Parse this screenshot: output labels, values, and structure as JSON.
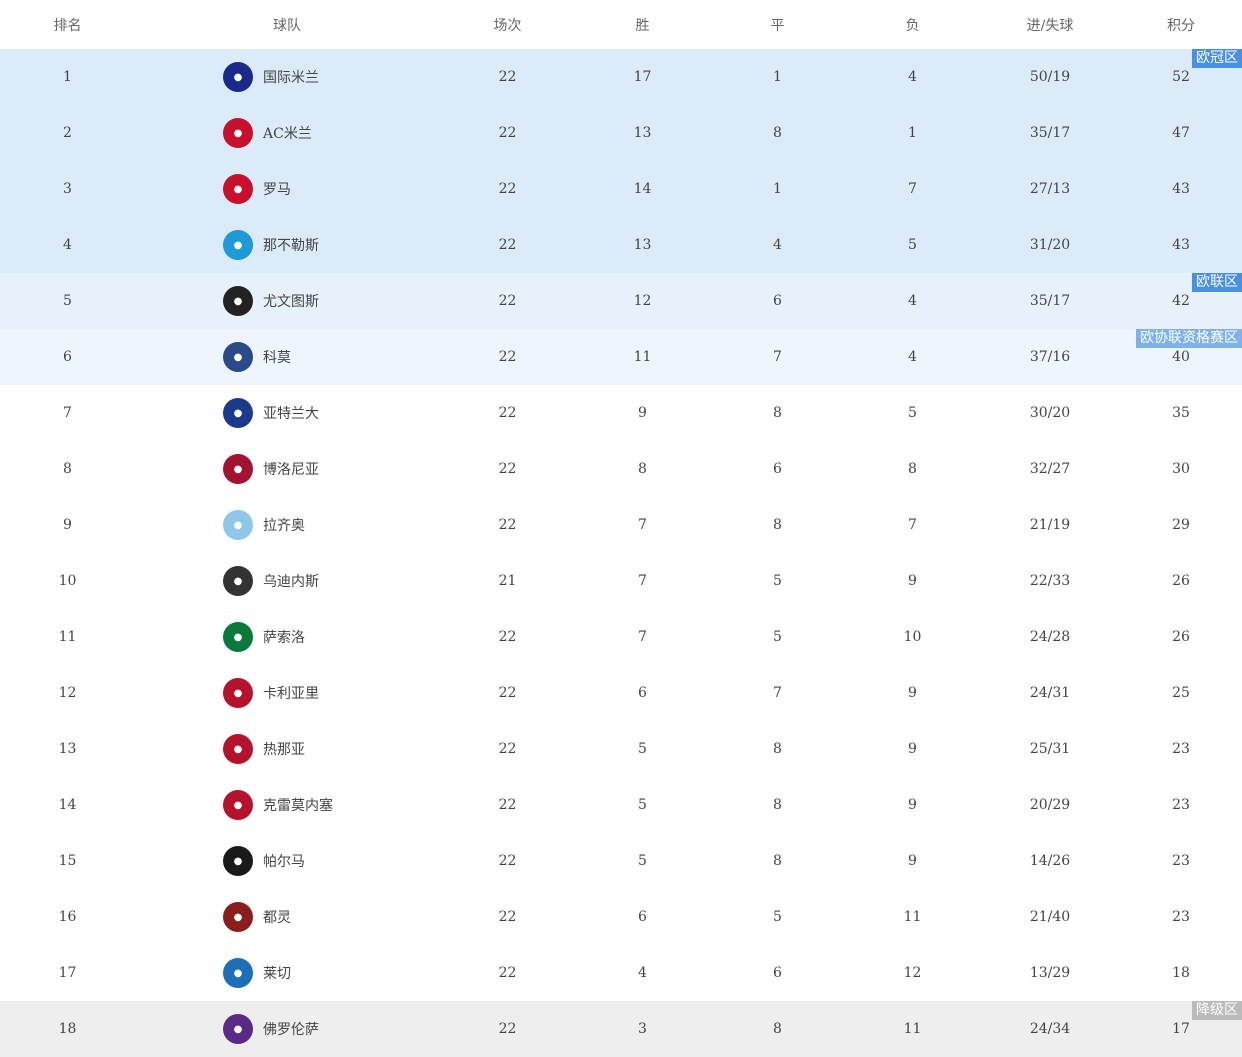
{
  "headers": [
    "排名",
    "球队",
    "场次",
    "胜",
    "平",
    "负",
    "进/失球",
    "积分"
  ],
  "zones": {
    "cl": {
      "label": "欧冠区",
      "bg": "#dcebfa",
      "badge": "#4a90e2"
    },
    "el": {
      "label": "欧联区",
      "bg": "#e7f1fc",
      "badge": "#4a90e2"
    },
    "ecl": {
      "label": "欧协联资格赛区",
      "bg": "#eff5fd",
      "badge": "#7fb2ea"
    },
    "rel": {
      "label": "降级区",
      "bg": "#eeeeee",
      "badge": "#bbbbbb"
    }
  },
  "rows": [
    {
      "rank": "1",
      "team": "国际米兰",
      "logo": "#1a2a8a",
      "p": "22",
      "w": "17",
      "d": "1",
      "l": "4",
      "gf": "50/19",
      "pts": "52",
      "zone": "cl"
    },
    {
      "rank": "2",
      "team": "AC米兰",
      "logo": "#c8102e",
      "p": "22",
      "w": "13",
      "d": "8",
      "l": "1",
      "gf": "35/17",
      "pts": "47",
      "zone": "cl"
    },
    {
      "rank": "3",
      "team": "罗马",
      "logo": "#c8102e",
      "p": "22",
      "w": "14",
      "d": "1",
      "l": "7",
      "gf": "27/13",
      "pts": "43",
      "zone": "cl"
    },
    {
      "rank": "4",
      "team": "那不勒斯",
      "logo": "#1e9bd7",
      "p": "22",
      "w": "13",
      "d": "4",
      "l": "5",
      "gf": "31/20",
      "pts": "43",
      "zone": "cl"
    },
    {
      "rank": "5",
      "team": "尤文图斯",
      "logo": "#222222",
      "p": "22",
      "w": "12",
      "d": "6",
      "l": "4",
      "gf": "35/17",
      "pts": "42",
      "zone": "el"
    },
    {
      "rank": "6",
      "team": "科莫",
      "logo": "#2b4a8a",
      "p": "22",
      "w": "11",
      "d": "7",
      "l": "4",
      "gf": "37/16",
      "pts": "40",
      "zone": "ecl"
    },
    {
      "rank": "7",
      "team": "亚特兰大",
      "logo": "#1b3a8c",
      "p": "22",
      "w": "9",
      "d": "8",
      "l": "5",
      "gf": "30/20",
      "pts": "35",
      "zone": ""
    },
    {
      "rank": "8",
      "team": "博洛尼亚",
      "logo": "#a3132f",
      "p": "22",
      "w": "8",
      "d": "6",
      "l": "8",
      "gf": "32/27",
      "pts": "30",
      "zone": ""
    },
    {
      "rank": "9",
      "team": "拉齐奥",
      "logo": "#8fc7ea",
      "p": "22",
      "w": "7",
      "d": "8",
      "l": "7",
      "gf": "21/19",
      "pts": "29",
      "zone": ""
    },
    {
      "rank": "10",
      "team": "乌迪内斯",
      "logo": "#333333",
      "p": "21",
      "w": "7",
      "d": "5",
      "l": "9",
      "gf": "22/33",
      "pts": "26",
      "zone": ""
    },
    {
      "rank": "11",
      "team": "萨索洛",
      "logo": "#0a7a3a",
      "p": "22",
      "w": "7",
      "d": "5",
      "l": "10",
      "gf": "24/28",
      "pts": "26",
      "zone": ""
    },
    {
      "rank": "12",
      "team": "卡利亚里",
      "logo": "#b5122e",
      "p": "22",
      "w": "6",
      "d": "7",
      "l": "9",
      "gf": "24/31",
      "pts": "25",
      "zone": ""
    },
    {
      "rank": "13",
      "team": "热那亚",
      "logo": "#b5122e",
      "p": "22",
      "w": "5",
      "d": "8",
      "l": "9",
      "gf": "25/31",
      "pts": "23",
      "zone": ""
    },
    {
      "rank": "14",
      "team": "克雷莫内塞",
      "logo": "#b5122e",
      "p": "22",
      "w": "5",
      "d": "8",
      "l": "9",
      "gf": "20/29",
      "pts": "23",
      "zone": ""
    },
    {
      "rank": "15",
      "team": "帕尔马",
      "logo": "#1a1a1a",
      "p": "22",
      "w": "5",
      "d": "8",
      "l": "9",
      "gf": "14/26",
      "pts": "23",
      "zone": ""
    },
    {
      "rank": "16",
      "team": "都灵",
      "logo": "#8a1e1e",
      "p": "22",
      "w": "6",
      "d": "5",
      "l": "11",
      "gf": "21/40",
      "pts": "23",
      "zone": ""
    },
    {
      "rank": "17",
      "team": "莱切",
      "logo": "#1d6fb8",
      "p": "22",
      "w": "4",
      "d": "6",
      "l": "12",
      "gf": "13/29",
      "pts": "18",
      "zone": ""
    },
    {
      "rank": "18",
      "team": "佛罗伦萨",
      "logo": "#5b2a86",
      "p": "22",
      "w": "3",
      "d": "8",
      "l": "11",
      "gf": "24/34",
      "pts": "17",
      "zone": "rel"
    }
  ]
}
